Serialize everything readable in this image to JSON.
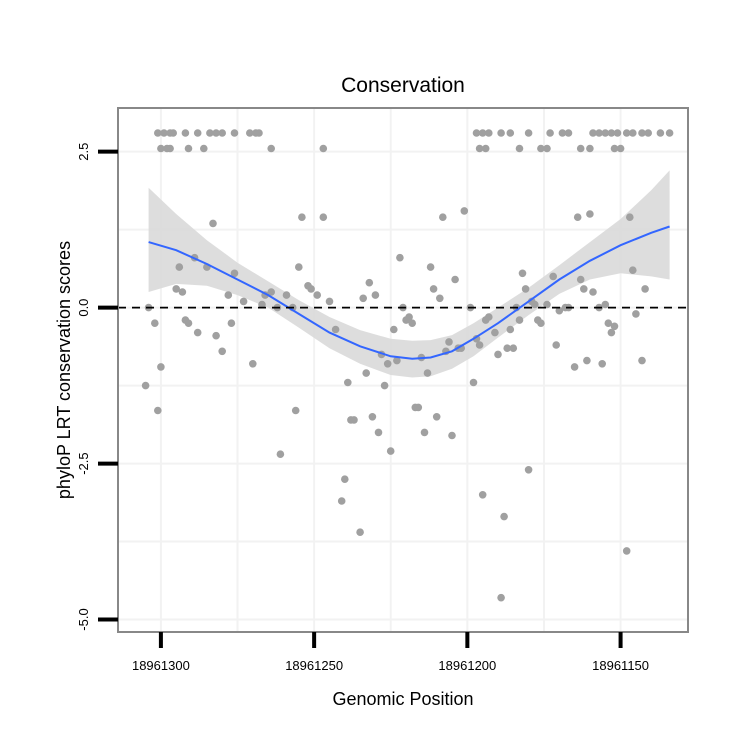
{
  "chart_data": {
    "type": "scatter",
    "title": "Conservation",
    "xlabel": "Genomic Position",
    "ylabel": "phyloP LRT conservation scores",
    "x_reversed": true,
    "xlim": [
      18961314,
      18961128
    ],
    "ylim": [
      -5.2,
      3.2
    ],
    "x_ticks": [
      {
        "value": 18961300,
        "label": "18961300"
      },
      {
        "value": 18961250,
        "label": "18961250"
      },
      {
        "value": 18961200,
        "label": "18961200"
      },
      {
        "value": 18961150,
        "label": "18961150"
      }
    ],
    "y_ticks": [
      {
        "value": 2.5,
        "label": "2.5"
      },
      {
        "value": 0.0,
        "label": "0.0"
      },
      {
        "value": -2.5,
        "label": "-2.5"
      },
      {
        "value": -5.0,
        "label": "-5.0"
      }
    ],
    "grid": true,
    "reference_line": {
      "y": 0,
      "style": "dashed"
    },
    "colors": {
      "points": "#a0a0a0",
      "smooth": "#3366ff",
      "ribbon": "#d9d9d9",
      "panel_border": "#888888",
      "grid": "#f2f2f2"
    },
    "series": [
      {
        "name": "phyloP scores",
        "points": [
          [
            18961301,
            2.8
          ],
          [
            18961299,
            2.8
          ],
          [
            18961297,
            2.8
          ],
          [
            18961296,
            2.8
          ],
          [
            18961300,
            2.55
          ],
          [
            18961298,
            2.55
          ],
          [
            18961297,
            2.55
          ],
          [
            18961292,
            2.8
          ],
          [
            18961288,
            2.8
          ],
          [
            18961284,
            2.8
          ],
          [
            18961282,
            2.8
          ],
          [
            18961280,
            2.8
          ],
          [
            18961276,
            2.8
          ],
          [
            18961271,
            2.8
          ],
          [
            18961269,
            2.8
          ],
          [
            18961268,
            2.8
          ],
          [
            18961291,
            2.55
          ],
          [
            18961286,
            2.55
          ],
          [
            18961264,
            2.55
          ],
          [
            18961247,
            2.55
          ],
          [
            18961197,
            2.8
          ],
          [
            18961195,
            2.8
          ],
          [
            18961193,
            2.8
          ],
          [
            18961189,
            2.8
          ],
          [
            18961186,
            2.8
          ],
          [
            18961180,
            2.8
          ],
          [
            18961173,
            2.8
          ],
          [
            18961169,
            2.8
          ],
          [
            18961167,
            2.8
          ],
          [
            18961159,
            2.8
          ],
          [
            18961157,
            2.8
          ],
          [
            18961155,
            2.8
          ],
          [
            18961153,
            2.8
          ],
          [
            18961151,
            2.8
          ],
          [
            18961148,
            2.8
          ],
          [
            18961146,
            2.8
          ],
          [
            18961143,
            2.8
          ],
          [
            18961141,
            2.8
          ],
          [
            18961137,
            2.8
          ],
          [
            18961134,
            2.8
          ],
          [
            18961196,
            2.55
          ],
          [
            18961194,
            2.55
          ],
          [
            18961183,
            2.55
          ],
          [
            18961176,
            2.55
          ],
          [
            18961174,
            2.55
          ],
          [
            18961163,
            2.55
          ],
          [
            18961160,
            2.55
          ],
          [
            18961152,
            2.55
          ],
          [
            18961150,
            2.55
          ],
          [
            18961304,
            0.0
          ],
          [
            18961302,
            -0.25
          ],
          [
            18961300,
            -0.95
          ],
          [
            18961305,
            -1.25
          ],
          [
            18961301,
            -1.65
          ],
          [
            18961295,
            0.3
          ],
          [
            18961293,
            0.25
          ],
          [
            18961294,
            0.65
          ],
          [
            18961291,
            -0.25
          ],
          [
            18961292,
            -0.2
          ],
          [
            18961288,
            -0.4
          ],
          [
            18961289,
            0.8
          ],
          [
            18961285,
            0.65
          ],
          [
            18961283,
            1.35
          ],
          [
            18961282,
            -0.45
          ],
          [
            18961280,
            -0.7
          ],
          [
            18961278,
            0.2
          ],
          [
            18961277,
            -0.25
          ],
          [
            18961276,
            0.55
          ],
          [
            18961273,
            0.1
          ],
          [
            18961270,
            -0.9
          ],
          [
            18961267,
            0.05
          ],
          [
            18961266,
            0.2
          ],
          [
            18961264,
            0.25
          ],
          [
            18961262,
            0.0
          ],
          [
            18961261,
            -2.35
          ],
          [
            18961259,
            0.2
          ],
          [
            18961257,
            0.0
          ],
          [
            18961256,
            -1.65
          ],
          [
            18961255,
            0.65
          ],
          [
            18961254,
            1.45
          ],
          [
            18961252,
            0.35
          ],
          [
            18961251,
            0.3
          ],
          [
            18961249,
            0.2
          ],
          [
            18961247,
            1.45
          ],
          [
            18961245,
            0.1
          ],
          [
            18961243,
            -0.35
          ],
          [
            18961241,
            -3.1
          ],
          [
            18961240,
            -2.75
          ],
          [
            18961239,
            -1.2
          ],
          [
            18961238,
            -1.8
          ],
          [
            18961237,
            -1.8
          ],
          [
            18961235,
            -3.6
          ],
          [
            18961234,
            0.15
          ],
          [
            18961233,
            -1.05
          ],
          [
            18961231,
            -1.75
          ],
          [
            18961232,
            0.4
          ],
          [
            18961230,
            0.2
          ],
          [
            18961229,
            -2.0
          ],
          [
            18961228,
            -0.75
          ],
          [
            18961227,
            -1.25
          ],
          [
            18961226,
            -0.9
          ],
          [
            18961225,
            -2.3
          ],
          [
            18961224,
            -0.35
          ],
          [
            18961223,
            -0.85
          ],
          [
            18961221,
            0.0
          ],
          [
            18961222,
            0.8
          ],
          [
            18961220,
            -0.2
          ],
          [
            18961219,
            -0.15
          ],
          [
            18961218,
            -0.25
          ],
          [
            18961217,
            -1.6
          ],
          [
            18961216,
            -1.6
          ],
          [
            18961215,
            -0.8
          ],
          [
            18961214,
            -2.0
          ],
          [
            18961213,
            -1.05
          ],
          [
            18961212,
            0.65
          ],
          [
            18961211,
            0.3
          ],
          [
            18961210,
            -1.75
          ],
          [
            18961209,
            0.15
          ],
          [
            18961208,
            1.45
          ],
          [
            18961207,
            -0.7
          ],
          [
            18961206,
            -0.55
          ],
          [
            18961205,
            -2.05
          ],
          [
            18961204,
            0.45
          ],
          [
            18961203,
            -0.65
          ],
          [
            18961202,
            -0.65
          ],
          [
            18961201,
            1.55
          ],
          [
            18961199,
            0.0
          ],
          [
            18961198,
            -1.2
          ],
          [
            18961197,
            -0.5
          ],
          [
            18961196,
            -0.6
          ],
          [
            18961195,
            -3.0
          ],
          [
            18961194,
            -0.2
          ],
          [
            18961193,
            -0.15
          ],
          [
            18961191,
            -0.4
          ],
          [
            18961190,
            -0.75
          ],
          [
            18961189,
            -4.65
          ],
          [
            18961188,
            -3.35
          ],
          [
            18961187,
            -0.65
          ],
          [
            18961186,
            -0.35
          ],
          [
            18961185,
            -0.65
          ],
          [
            18961184,
            0.0
          ],
          [
            18961183,
            -0.2
          ],
          [
            18961182,
            0.55
          ],
          [
            18961181,
            0.3
          ],
          [
            18961180,
            -2.6
          ],
          [
            18961179,
            0.1
          ],
          [
            18961178,
            0.05
          ],
          [
            18961177,
            -0.2
          ],
          [
            18961176,
            -0.25
          ],
          [
            18961174,
            0.05
          ],
          [
            18961172,
            0.5
          ],
          [
            18961171,
            -0.6
          ],
          [
            18961170,
            -0.05
          ],
          [
            18961168,
            0.0
          ],
          [
            18961167,
            0.0
          ],
          [
            18961165,
            -0.95
          ],
          [
            18961164,
            1.45
          ],
          [
            18961163,
            0.45
          ],
          [
            18961162,
            0.3
          ],
          [
            18961161,
            -0.85
          ],
          [
            18961160,
            1.5
          ],
          [
            18961159,
            0.25
          ],
          [
            18961157,
            0.0
          ],
          [
            18961156,
            -0.9
          ],
          [
            18961155,
            0.05
          ],
          [
            18961154,
            -0.25
          ],
          [
            18961153,
            -0.4
          ],
          [
            18961152,
            -0.3
          ],
          [
            18961148,
            -3.9
          ],
          [
            18961147,
            1.45
          ],
          [
            18961146,
            0.6
          ],
          [
            18961145,
            -0.1
          ],
          [
            18961143,
            -0.85
          ],
          [
            18961142,
            0.3
          ]
        ]
      }
    ],
    "smooth": {
      "method": "loess",
      "curve": [
        [
          18961304,
          1.05
        ],
        [
          18961295,
          0.92
        ],
        [
          18961285,
          0.7
        ],
        [
          18961275,
          0.45
        ],
        [
          18961265,
          0.2
        ],
        [
          18961255,
          -0.1
        ],
        [
          18961245,
          -0.4
        ],
        [
          18961235,
          -0.62
        ],
        [
          18961225,
          -0.78
        ],
        [
          18961218,
          -0.82
        ],
        [
          18961212,
          -0.8
        ],
        [
          18961205,
          -0.7
        ],
        [
          18961198,
          -0.5
        ],
        [
          18961190,
          -0.25
        ],
        [
          18961180,
          0.1
        ],
        [
          18961170,
          0.45
        ],
        [
          18961160,
          0.75
        ],
        [
          18961150,
          1.0
        ],
        [
          18961140,
          1.2
        ],
        [
          18961134,
          1.3
        ]
      ],
      "ribbon_lower": [
        [
          18961304,
          0.25
        ],
        [
          18961295,
          0.38
        ],
        [
          18961285,
          0.35
        ],
        [
          18961275,
          0.2
        ],
        [
          18961265,
          0.0
        ],
        [
          18961255,
          -0.32
        ],
        [
          18961245,
          -0.65
        ],
        [
          18961235,
          -0.9
        ],
        [
          18961225,
          -1.08
        ],
        [
          18961218,
          -1.12
        ],
        [
          18961212,
          -1.1
        ],
        [
          18961205,
          -0.98
        ],
        [
          18961198,
          -0.78
        ],
        [
          18961190,
          -0.48
        ],
        [
          18961180,
          -0.12
        ],
        [
          18961170,
          0.22
        ],
        [
          18961160,
          0.45
        ],
        [
          18961150,
          0.55
        ],
        [
          18961140,
          0.5
        ],
        [
          18961134,
          0.45
        ]
      ],
      "ribbon_upper": [
        [
          18961304,
          1.92
        ],
        [
          18961295,
          1.5
        ],
        [
          18961285,
          1.08
        ],
        [
          18961275,
          0.72
        ],
        [
          18961265,
          0.42
        ],
        [
          18961255,
          0.12
        ],
        [
          18961245,
          -0.15
        ],
        [
          18961235,
          -0.36
        ],
        [
          18961225,
          -0.5
        ],
        [
          18961218,
          -0.53
        ],
        [
          18961212,
          -0.52
        ],
        [
          18961205,
          -0.44
        ],
        [
          18961198,
          -0.25
        ],
        [
          18961190,
          0.0
        ],
        [
          18961180,
          0.32
        ],
        [
          18961170,
          0.68
        ],
        [
          18961160,
          1.05
        ],
        [
          18961150,
          1.42
        ],
        [
          18961140,
          1.88
        ],
        [
          18961134,
          2.2
        ]
      ]
    }
  }
}
